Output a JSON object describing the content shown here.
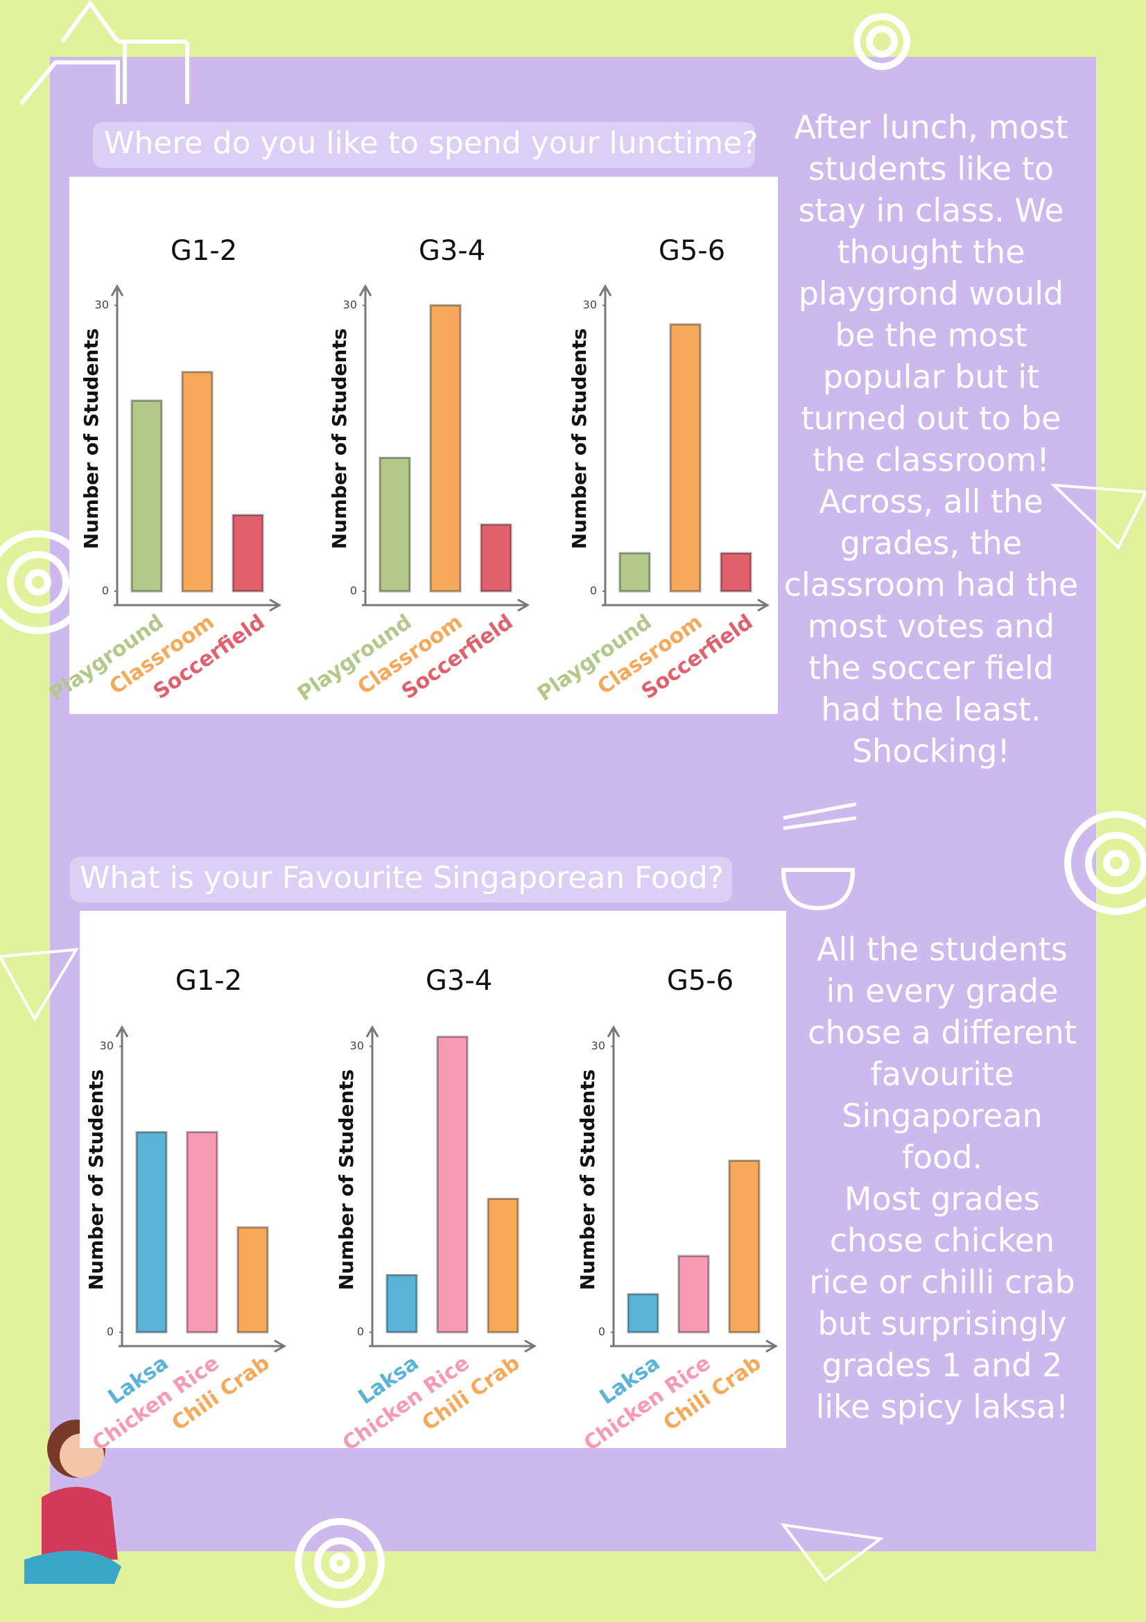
{
  "headings": [
    "Where do you like to spend your lunctime?",
    "What is your Favourite Singaporean Food?"
  ],
  "paragraphs": [
    {
      "lines": [
        "After lunch, most",
        "students like to",
        "stay in class. We",
        "thought the",
        "playgrond would",
        "be the most",
        "popular but it",
        "turned out to be",
        "the classroom!",
        "Across, all the",
        "grades, the",
        "classroom had the",
        "most votes and",
        "the soccer field",
        "had the least.",
        "Shocking!"
      ]
    },
    {
      "lines": [
        "All the students",
        "in every grade",
        "chose a different",
        "favourite",
        "Singaporean",
        "food.",
        "Most grades",
        "chose chicken",
        "rice or chilli crab",
        "but surprisingly",
        "grades 1 and 2",
        "like spicy laksa!"
      ]
    }
  ],
  "chart_data": [
    {
      "type": "bar",
      "title": "G1-2",
      "y_label": "Number of Students",
      "categories": [
        "Playground",
        "Classroom",
        "Soccerfield"
      ],
      "values": [
        20,
        23,
        8
      ],
      "colors": [
        "#b3c98a",
        "#f7a95a",
        "#e0606e"
      ],
      "ylim": [
        0,
        32
      ],
      "yticks": [
        0,
        30
      ]
    },
    {
      "type": "bar",
      "title": "G3-4",
      "y_label": "Number of Students",
      "categories": [
        "Playground",
        "Classroom",
        "Soccerfield"
      ],
      "values": [
        14,
        30,
        7
      ],
      "colors": [
        "#b3c98a",
        "#f7a95a",
        "#e0606e"
      ],
      "ylim": [
        0,
        32
      ],
      "yticks": [
        0,
        30
      ]
    },
    {
      "type": "bar",
      "title": "G5-6",
      "y_label": "Number of Students",
      "categories": [
        "Playground",
        "Classroom",
        "Soccerfield"
      ],
      "values": [
        4,
        28,
        4
      ],
      "colors": [
        "#b3c98a",
        "#f7a95a",
        "#e0606e"
      ],
      "ylim": [
        0,
        32
      ],
      "yticks": [
        0,
        30
      ]
    },
    {
      "type": "bar",
      "title": "G1-2",
      "y_label": "Number of Students",
      "categories": [
        "Laksa",
        "Chicken Rice",
        "Chili Crab"
      ],
      "values": [
        21,
        21,
        11
      ],
      "colors": [
        "#5bb3d8",
        "#f79ab3",
        "#f7a95a"
      ],
      "ylim": [
        0,
        32
      ],
      "yticks": [
        0,
        30
      ]
    },
    {
      "type": "bar",
      "title": "G3-4",
      "y_label": "Number of Students",
      "categories": [
        "Laksa",
        "Chicken Rice",
        "Chili Crab"
      ],
      "values": [
        6,
        31,
        14
      ],
      "colors": [
        "#5bb3d8",
        "#f79ab3",
        "#f7a95a"
      ],
      "ylim": [
        0,
        32
      ],
      "yticks": [
        0,
        30
      ]
    },
    {
      "type": "bar",
      "title": "G5-6",
      "y_label": "Number of Students",
      "categories": [
        "Laksa",
        "Chicken Rice",
        "Chili Crab"
      ],
      "values": [
        4,
        8,
        18
      ],
      "colors": [
        "#5bb3d8",
        "#f79ab3",
        "#f7a95a"
      ],
      "ylim": [
        0,
        32
      ],
      "yticks": [
        0,
        30
      ]
    }
  ]
}
